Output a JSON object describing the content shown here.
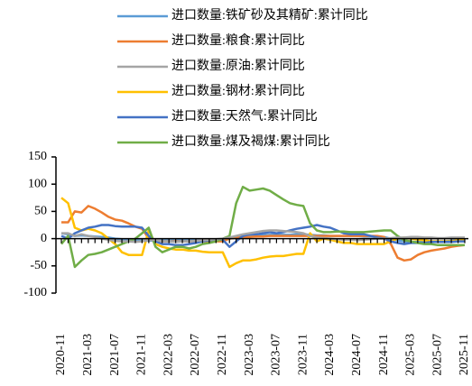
{
  "chart_data": {
    "type": "line",
    "categories": [
      "2020-11",
      null,
      null,
      null,
      "2021-03",
      null,
      null,
      null,
      "2021-07",
      null,
      null,
      null,
      "2021-11",
      null,
      null,
      null,
      "2022-03",
      null,
      null,
      null,
      "2022-07",
      null,
      null,
      null,
      "2022-11",
      null,
      null,
      null,
      "2023-03",
      null,
      null,
      null,
      "2023-07",
      null,
      null,
      null,
      "2023-11",
      null,
      null,
      null,
      "2024-03",
      null,
      null,
      null,
      "2024-07",
      null,
      null,
      null,
      "2024-11",
      null,
      null,
      null,
      "2025-03",
      null,
      null,
      null,
      "2025-07",
      null,
      null,
      null,
      "2025-11"
    ],
    "ylim": [
      -100,
      150
    ],
    "yticks": [
      -100,
      -50,
      0,
      50,
      100,
      150
    ],
    "series": [
      {
        "name": "进口数量:铁矿砂及其精矿:累计同比",
        "color": "#5b9bd5",
        "values": [
          10,
          8,
          5,
          6,
          5,
          4,
          3,
          2,
          0,
          -1,
          -2,
          -3,
          -3,
          -4,
          -3,
          -3,
          -3,
          -3,
          -2,
          -2,
          -2,
          -2,
          -1,
          -1,
          -1,
          0,
          2,
          4,
          5,
          6,
          6,
          7,
          7,
          7,
          7,
          8,
          8,
          7,
          6,
          6,
          5,
          5,
          5,
          5,
          5,
          4,
          4,
          4,
          3,
          0,
          -3,
          -5,
          -6,
          -6,
          -6,
          -5,
          -5,
          -5,
          -4,
          -3,
          -2
        ]
      },
      {
        "name": "进口数量:粮食:累计同比",
        "color": "#ed7d31",
        "values": [
          30,
          30,
          50,
          48,
          60,
          55,
          48,
          40,
          35,
          33,
          28,
          22,
          18,
          0,
          -5,
          -5,
          -5,
          -5,
          -5,
          -5,
          -5,
          -5,
          -5,
          -5,
          -5,
          0,
          2,
          3,
          3,
          4,
          4,
          5,
          5,
          5,
          5,
          5,
          5,
          5,
          5,
          5,
          5,
          5,
          5,
          5,
          5,
          5,
          5,
          5,
          3,
          -10,
          -35,
          -40,
          -38,
          -30,
          -25,
          -22,
          -20,
          -18,
          -15,
          -13,
          -12
        ]
      },
      {
        "name": "进口数量:原油:累计同比",
        "color": "#a5a5a5",
        "values": [
          10,
          10,
          5,
          8,
          5,
          3,
          0,
          -2,
          -4,
          -5,
          -5,
          -6,
          -5,
          -3,
          -2,
          -5,
          -5,
          -6,
          -5,
          -5,
          -4,
          -3,
          -2,
          -1,
          0,
          2,
          5,
          8,
          10,
          12,
          14,
          15,
          15,
          14,
          13,
          12,
          10,
          5,
          2,
          1,
          0,
          -1,
          -2,
          -2,
          -3,
          -2,
          -1,
          0,
          0,
          1,
          2,
          2,
          3,
          3,
          2,
          2,
          1,
          1,
          2,
          2,
          2
        ]
      },
      {
        "name": "进口数量:钢材:累计同比",
        "color": "#ffc000",
        "values": [
          75,
          65,
          20,
          15,
          18,
          15,
          10,
          0,
          -10,
          -25,
          -30,
          -30,
          -30,
          15,
          -10,
          -15,
          -18,
          -20,
          -20,
          -22,
          -22,
          -24,
          -25,
          -25,
          -25,
          -52,
          -45,
          -40,
          -40,
          -38,
          -35,
          -33,
          -32,
          -32,
          -30,
          -28,
          -28,
          10,
          -5,
          0,
          -2,
          -5,
          -8,
          -8,
          -10,
          -10,
          -10,
          -10,
          -10,
          -5,
          0,
          2,
          0,
          -2,
          -3,
          -5,
          -5,
          -5,
          -5,
          -3,
          -2
        ]
      },
      {
        "name": "进口数量:天然气:累计同比",
        "color": "#4472c4",
        "values": [
          5,
          0,
          10,
          15,
          20,
          22,
          25,
          25,
          23,
          22,
          22,
          22,
          20,
          5,
          -5,
          -10,
          -10,
          -12,
          -12,
          -10,
          -8,
          -5,
          -3,
          -2,
          -2,
          -15,
          -5,
          5,
          8,
          8,
          10,
          12,
          10,
          12,
          15,
          18,
          20,
          22,
          25,
          22,
          20,
          15,
          10,
          8,
          8,
          8,
          5,
          2,
          0,
          -5,
          -8,
          -10,
          -8,
          -8,
          -8,
          -6,
          -6,
          -6,
          -6,
          -5,
          -5
        ]
      },
      {
        "name": "进口数量:煤及褐煤:累计同比",
        "color": "#70ad47",
        "values": [
          -10,
          5,
          -52,
          -40,
          -30,
          -28,
          -25,
          -20,
          -15,
          -10,
          -5,
          0,
          10,
          20,
          -15,
          -25,
          -20,
          -15,
          -15,
          -18,
          -15,
          -10,
          -8,
          -5,
          0,
          5,
          65,
          95,
          88,
          90,
          92,
          88,
          80,
          72,
          65,
          62,
          60,
          28,
          15,
          12,
          12,
          13,
          13,
          12,
          12,
          12,
          13,
          14,
          15,
          15,
          5,
          -3,
          -5,
          -8,
          -10,
          -10,
          -12,
          -12,
          -12,
          -12,
          -12
        ]
      }
    ]
  }
}
